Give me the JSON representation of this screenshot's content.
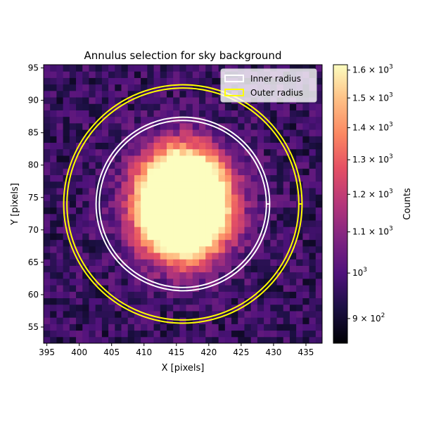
{
  "chart_data": {
    "type": "heatmap",
    "title": "Annulus selection for sky background",
    "xlabel": "X [pixels]",
    "ylabel": "Y [pixels]",
    "xlim": [
      394.5,
      437.5
    ],
    "ylim": [
      52.5,
      95.5
    ],
    "x_ticks": [
      395,
      400,
      405,
      410,
      415,
      420,
      425,
      430,
      435
    ],
    "y_ticks": [
      55,
      60,
      65,
      70,
      75,
      80,
      85,
      90,
      95
    ],
    "grid": false,
    "colormap": "magma",
    "colorbar": {
      "label": "Counts",
      "scale": "log",
      "range": [
        850,
        1620
      ],
      "tick_values": [
        900,
        1000,
        1100,
        1200,
        1300,
        1400,
        1500,
        1600
      ],
      "tick_labels": [
        {
          "base": "9 × 10",
          "exp": "2"
        },
        {
          "base": "10",
          "exp": "3"
        },
        {
          "base": "1.1 × 10",
          "exp": "3"
        },
        {
          "base": "1.2 × 10",
          "exp": "3"
        },
        {
          "base": "1.3 × 10",
          "exp": "3"
        },
        {
          "base": "1.4 × 10",
          "exp": "3"
        },
        {
          "base": "1.5 × 10",
          "exp": "3"
        },
        {
          "base": "1.6 × 10",
          "exp": "3"
        }
      ]
    },
    "source": {
      "x": 416,
      "y": 74,
      "peak_counts": 1620,
      "background_counts": 960
    },
    "apertures": [
      {
        "name": "Inner radius",
        "color": "#ffffff",
        "center": [
          416,
          74
        ],
        "radii": [
          12.9,
          13.4
        ]
      },
      {
        "name": "Outer radius",
        "color": "#ffff00",
        "center": [
          416,
          74
        ],
        "radii": [
          17.9,
          18.4
        ]
      }
    ],
    "legend": {
      "location": "upper right",
      "entries": [
        "Inner radius",
        "Outer radius"
      ]
    }
  }
}
